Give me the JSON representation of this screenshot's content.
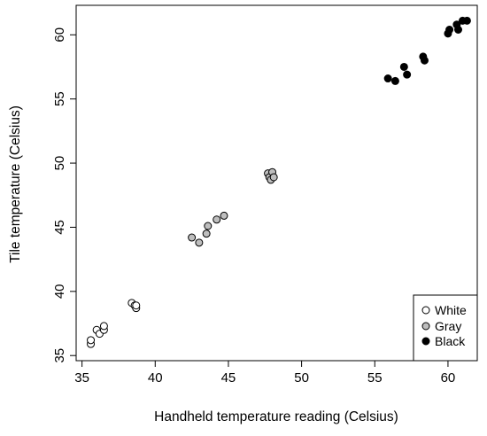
{
  "chart_data": {
    "type": "scatter",
    "title": "",
    "xlabel": "Handheld temperature reading (Celsius)",
    "ylabel": "Tile temperature (Celsius)",
    "xlim": [
      34.6,
      62.0
    ],
    "ylim": [
      34.6,
      62.3
    ],
    "x_ticks": [
      35,
      40,
      45,
      50,
      55,
      60
    ],
    "y_ticks": [
      35,
      40,
      45,
      50,
      55,
      60
    ],
    "legend_position": "bottom-right",
    "grid": false,
    "series": [
      {
        "name": "White",
        "fill": "#ffffff",
        "stroke": "#000000",
        "points": [
          [
            35.6,
            35.9
          ],
          [
            35.6,
            36.2
          ],
          [
            36.0,
            37.0
          ],
          [
            36.2,
            36.7
          ],
          [
            36.5,
            37.0
          ],
          [
            36.5,
            37.3
          ],
          [
            38.4,
            39.1
          ],
          [
            38.6,
            38.9
          ],
          [
            38.7,
            38.7
          ],
          [
            38.7,
            38.9
          ]
        ]
      },
      {
        "name": "Gray",
        "fill": "#bebebe",
        "stroke": "#000000",
        "points": [
          [
            42.5,
            44.2
          ],
          [
            43.0,
            43.8
          ],
          [
            43.5,
            44.5
          ],
          [
            43.6,
            45.1
          ],
          [
            44.2,
            45.6
          ],
          [
            44.7,
            45.9
          ],
          [
            47.7,
            49.2
          ],
          [
            47.8,
            48.9
          ],
          [
            47.9,
            48.7
          ],
          [
            48.0,
            49.3
          ],
          [
            48.1,
            48.9
          ]
        ]
      },
      {
        "name": "Black",
        "fill": "#000000",
        "stroke": "#000000",
        "points": [
          [
            55.9,
            56.6
          ],
          [
            56.4,
            56.4
          ],
          [
            57.0,
            57.5
          ],
          [
            57.2,
            56.9
          ],
          [
            58.3,
            58.3
          ],
          [
            58.4,
            58.0
          ],
          [
            60.0,
            60.1
          ],
          [
            60.1,
            60.4
          ],
          [
            60.6,
            60.8
          ],
          [
            60.7,
            60.4
          ],
          [
            61.0,
            61.1
          ],
          [
            61.3,
            61.1
          ]
        ]
      }
    ]
  }
}
